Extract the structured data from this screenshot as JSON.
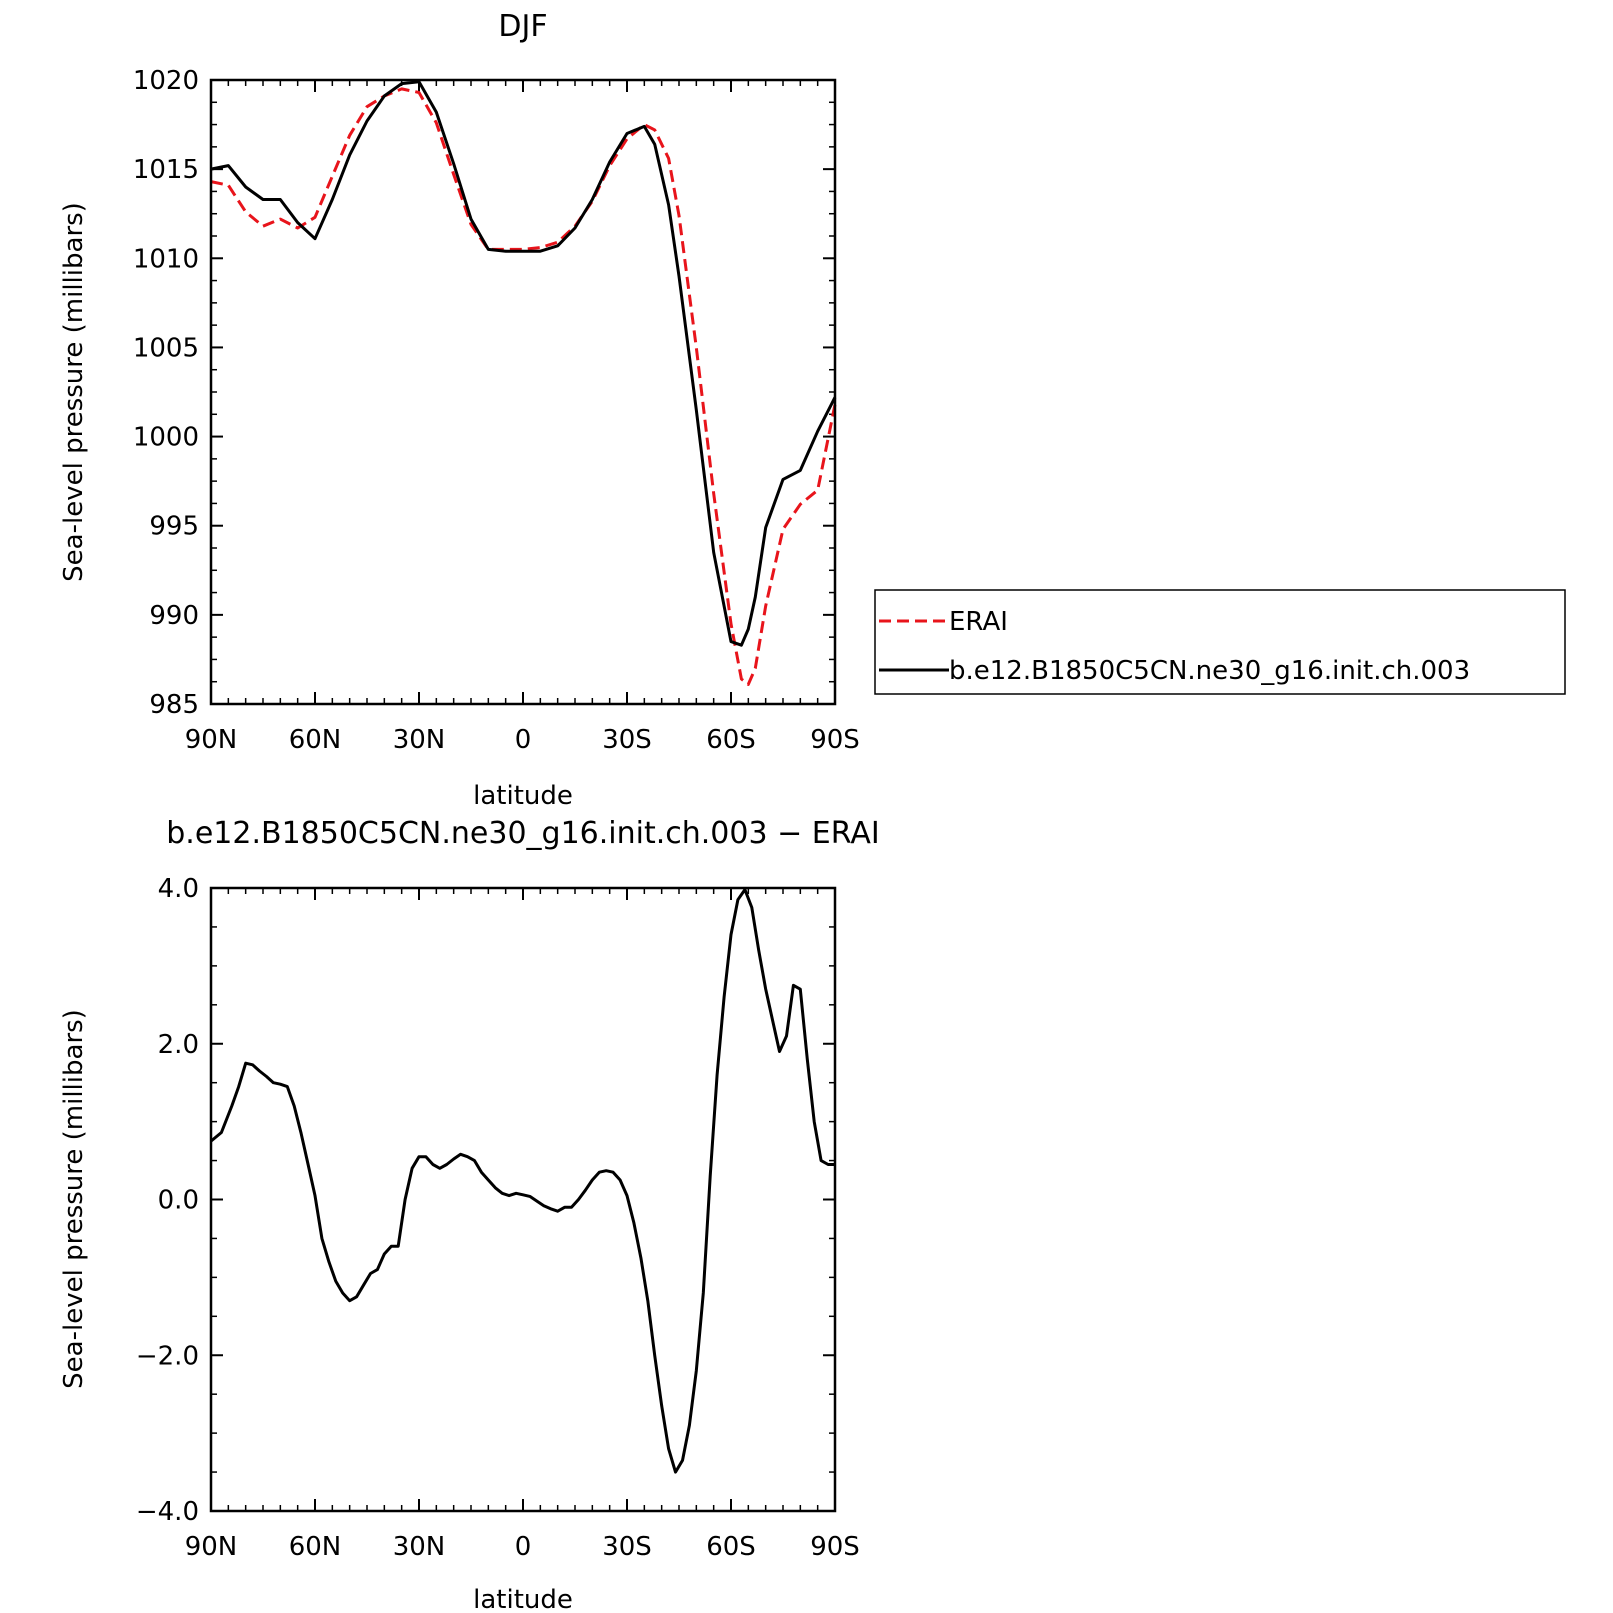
{
  "chart_data": [
    {
      "type": "line",
      "title": "DJF",
      "xlabel": "latitude",
      "ylabel": "Sea-level pressure (millibars)",
      "xlim": [
        90,
        -90
      ],
      "ylim": [
        985,
        1020
      ],
      "x_ticks": [
        {
          "value": 90,
          "label": "90N"
        },
        {
          "value": 60,
          "label": "60N"
        },
        {
          "value": 30,
          "label": "30N"
        },
        {
          "value": 0,
          "label": "0"
        },
        {
          "value": -30,
          "label": "30S"
        },
        {
          "value": -60,
          "label": "60S"
        },
        {
          "value": -90,
          "label": "90S"
        }
      ],
      "y_ticks": [
        {
          "value": 985,
          "label": "985"
        },
        {
          "value": 990,
          "label": "990"
        },
        {
          "value": 995,
          "label": "995"
        },
        {
          "value": 1000,
          "label": "1000"
        },
        {
          "value": 1005,
          "label": "1005"
        },
        {
          "value": 1010,
          "label": "1010"
        },
        {
          "value": 1015,
          "label": "1015"
        },
        {
          "value": 1020,
          "label": "1020"
        }
      ],
      "legend": {
        "placement": "right"
      },
      "series": [
        {
          "name": "ERAI",
          "color": "#e8141b",
          "style": "dashed",
          "x": [
            90,
            85,
            80,
            75,
            70,
            65,
            60,
            55,
            50,
            45,
            40,
            35,
            30,
            25,
            20,
            15,
            10,
            5,
            0,
            -5,
            -10,
            -15,
            -20,
            -25,
            -30,
            -35,
            -38,
            -42,
            -45,
            -50,
            -55,
            -60,
            -63,
            -65,
            -67,
            -70,
            -75,
            -80,
            -85,
            -90
          ],
          "y": [
            1014.3,
            1014.1,
            1012.6,
            1011.8,
            1012.2,
            1011.7,
            1012.3,
            1014.6,
            1016.9,
            1018.5,
            1019.1,
            1019.5,
            1019.3,
            1017.6,
            1014.7,
            1011.9,
            1010.5,
            1010.5,
            1010.5,
            1010.6,
            1010.9,
            1011.8,
            1013.2,
            1015.2,
            1016.7,
            1017.5,
            1017.2,
            1015.6,
            1012.4,
            1005.0,
            996.8,
            989.5,
            986.4,
            986.1,
            987.0,
            990.5,
            994.8,
            996.2,
            997.0,
            1001.8
          ]
        },
        {
          "name": "b.e12.B1850C5CN.ne30_g16.init.ch.003",
          "color": "#000000",
          "style": "solid",
          "x": [
            90,
            85,
            80,
            75,
            70,
            65,
            60,
            55,
            50,
            45,
            40,
            35,
            30,
            25,
            20,
            15,
            10,
            5,
            0,
            -5,
            -10,
            -15,
            -20,
            -25,
            -30,
            -35,
            -38,
            -42,
            -45,
            -50,
            -55,
            -60,
            -63,
            -65,
            -67,
            -70,
            -75,
            -80,
            -85,
            -90
          ],
          "y": [
            1015.0,
            1015.2,
            1014.0,
            1013.3,
            1013.3,
            1012.0,
            1011.1,
            1013.3,
            1015.8,
            1017.7,
            1019.1,
            1019.8,
            1019.9,
            1018.2,
            1015.3,
            1012.2,
            1010.5,
            1010.4,
            1010.4,
            1010.4,
            1010.7,
            1011.7,
            1013.3,
            1015.4,
            1017.0,
            1017.4,
            1016.4,
            1013.0,
            1009.0,
            1001.5,
            993.5,
            988.5,
            988.3,
            989.2,
            991.0,
            994.9,
            997.6,
            998.1,
            1000.3,
            1002.2
          ]
        }
      ]
    },
    {
      "type": "line",
      "title": "b.e12.B1850C5CN.ne30_g16.init.ch.003 − ERAI",
      "xlabel": "latitude",
      "ylabel": "Sea-level pressure (millibars)",
      "xlim": [
        90,
        -90
      ],
      "ylim": [
        -4.0,
        4.0
      ],
      "x_ticks": [
        {
          "value": 90,
          "label": "90N"
        },
        {
          "value": 60,
          "label": "60N"
        },
        {
          "value": 30,
          "label": "30N"
        },
        {
          "value": 0,
          "label": "0"
        },
        {
          "value": -30,
          "label": "30S"
        },
        {
          "value": -60,
          "label": "60S"
        },
        {
          "value": -90,
          "label": "90S"
        }
      ],
      "y_ticks": [
        {
          "value": -4.0,
          "label": "−4.0"
        },
        {
          "value": -2.0,
          "label": "−2.0"
        },
        {
          "value": 0.0,
          "label": "0.0"
        },
        {
          "value": 2.0,
          "label": "2.0"
        },
        {
          "value": 4.0,
          "label": "4.0"
        }
      ],
      "series": [
        {
          "color": "#000000",
          "style": "solid",
          "x": [
            90,
            87,
            84,
            82,
            80,
            78,
            76,
            74,
            72,
            70,
            68,
            66,
            64,
            62,
            60,
            58,
            56,
            54,
            52,
            50,
            48,
            46,
            44,
            42,
            40,
            38,
            36,
            34,
            32,
            30,
            28,
            26,
            24,
            22,
            20,
            18,
            16,
            14,
            12,
            10,
            8,
            6,
            4,
            2,
            0,
            -2,
            -4,
            -6,
            -8,
            -10,
            -12,
            -14,
            -16,
            -18,
            -20,
            -22,
            -24,
            -26,
            -28,
            -30,
            -32,
            -34,
            -36,
            -38,
            -40,
            -42,
            -44,
            -46,
            -48,
            -50,
            -52,
            -54,
            -56,
            -58,
            -60,
            -62,
            -64,
            -66,
            -68,
            -70,
            -72,
            -74,
            -76,
            -78,
            -80,
            -82,
            -84,
            -86,
            -88,
            -90
          ],
          "y": [
            0.75,
            0.86,
            1.2,
            1.45,
            1.75,
            1.73,
            1.65,
            1.58,
            1.5,
            1.48,
            1.45,
            1.2,
            0.85,
            0.45,
            0.05,
            -0.5,
            -0.8,
            -1.05,
            -1.2,
            -1.3,
            -1.25,
            -1.1,
            -0.95,
            -0.9,
            -0.7,
            -0.6,
            -0.6,
            0.0,
            0.4,
            0.55,
            0.55,
            0.45,
            0.4,
            0.45,
            0.52,
            0.58,
            0.55,
            0.5,
            0.35,
            0.25,
            0.15,
            0.08,
            0.05,
            0.08,
            0.06,
            0.04,
            -0.02,
            -0.08,
            -0.12,
            -0.15,
            -0.1,
            -0.1,
            0.0,
            0.12,
            0.25,
            0.35,
            0.37,
            0.35,
            0.25,
            0.05,
            -0.3,
            -0.75,
            -1.3,
            -2.0,
            -2.65,
            -3.2,
            -3.5,
            -3.35,
            -2.9,
            -2.2,
            -1.2,
            0.3,
            1.6,
            2.6,
            3.4,
            3.85,
            3.98,
            3.75,
            3.2,
            2.7,
            2.3,
            1.9,
            2.1,
            2.75,
            2.7,
            1.8,
            1.0,
            0.5,
            0.45,
            0.45
          ]
        }
      ]
    }
  ]
}
